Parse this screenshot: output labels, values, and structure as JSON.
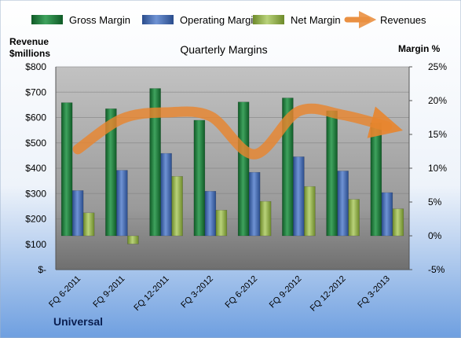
{
  "chart_data": {
    "type": "bar",
    "title": "Quarterly Margins",
    "left_axis_label_line1": "Revenue",
    "left_axis_label_line2": "$millions",
    "right_axis_label": "Margin %",
    "footer_label": "Universal",
    "categories": [
      "FQ 6-2011",
      "FQ 9-2011",
      "FQ 12-2011",
      "FQ 3-2012",
      "FQ 6-2012",
      "FQ 9-2012",
      "FQ 12-2012",
      "FQ 3-2013"
    ],
    "left_axis": {
      "min": 0,
      "max": 800,
      "step": 100,
      "ticks": [
        "$-",
        "$100",
        "$200",
        "$300",
        "$400",
        "$500",
        "$600",
        "$700",
        "$800"
      ]
    },
    "right_axis": {
      "min": -5,
      "max": 25,
      "step": 5,
      "ticks": [
        "-5%",
        "0%",
        "5%",
        "10%",
        "15%",
        "20%",
        "25%"
      ]
    },
    "grid": true,
    "legend_position": "top",
    "series": [
      {
        "name": "Gross Margin",
        "axis": "right",
        "kind": "bar",
        "color": "#1E7A3C",
        "values": [
          19.7,
          18.8,
          21.8,
          17.1,
          19.8,
          20.4,
          18.5,
          16.7
        ]
      },
      {
        "name": "Operating Margin",
        "axis": "right",
        "kind": "bar",
        "color": "#3E67B0",
        "values": [
          6.7,
          9.7,
          12.2,
          6.6,
          9.4,
          11.7,
          9.6,
          6.4
        ]
      },
      {
        "name": "Net Margin",
        "axis": "right",
        "kind": "bar",
        "color": "#8FAF3E",
        "values": [
          3.4,
          -1.2,
          8.8,
          3.8,
          5.1,
          7.3,
          5.4,
          4.0
        ]
      },
      {
        "name": "Revenues",
        "axis": "left",
        "kind": "line",
        "color": "#E8852E",
        "values": [
          475,
          595,
          620,
          605,
          455,
          625,
          610,
          565
        ]
      }
    ]
  }
}
